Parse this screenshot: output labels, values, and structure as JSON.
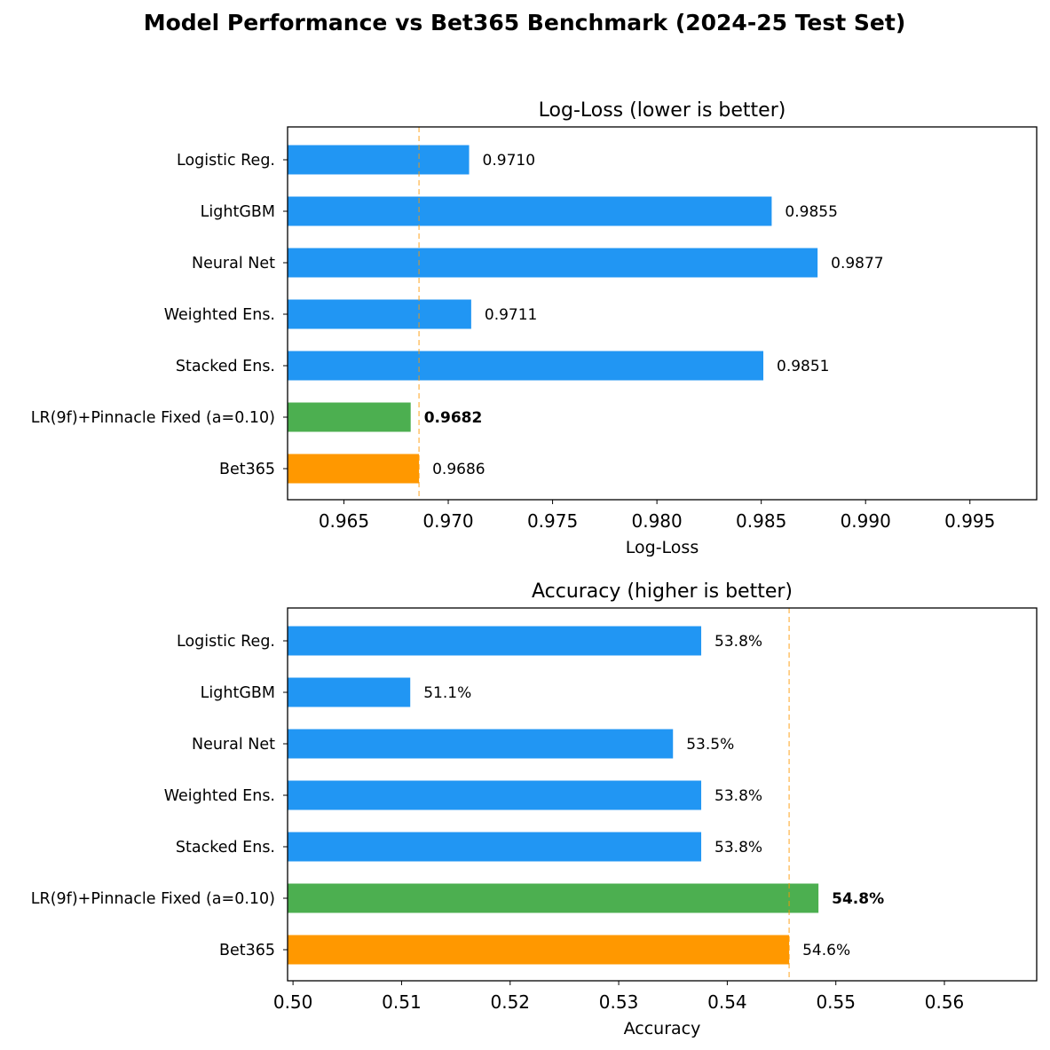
{
  "figure": {
    "title": "Model Performance vs Bet365 Benchmark (2024-25 Test Set)"
  },
  "colors": {
    "model": "#2196F3",
    "best": "#4CAF50",
    "benchmark": "#FF9800",
    "reference_line": "#FF9800"
  },
  "chart_data": [
    {
      "type": "bar",
      "orientation": "horizontal",
      "title": "Log-Loss (lower is better)",
      "xlabel": "Log-Loss",
      "ylabel": "",
      "xlim": [
        0.9623,
        0.9982
      ],
      "xticks": [
        0.965,
        0.97,
        0.975,
        0.98,
        0.985,
        0.99,
        0.995
      ],
      "xtick_labels": [
        "0.965",
        "0.970",
        "0.975",
        "0.980",
        "0.985",
        "0.990",
        "0.995"
      ],
      "categories": [
        "Logistic Reg.",
        "LightGBM",
        "Neural Net",
        "Weighted Ens.",
        "Stacked Ens.",
        "LR(9f)+Pinnacle Fixed (a=0.10)",
        "Bet365"
      ],
      "values": [
        0.971,
        0.9855,
        0.9877,
        0.9711,
        0.9851,
        0.9682,
        0.9686
      ],
      "value_labels": [
        "0.9710",
        "0.9855",
        "0.9877",
        "0.9711",
        "0.9851",
        "0.9682",
        "0.9686"
      ],
      "bar_roles": [
        "model",
        "model",
        "model",
        "model",
        "model",
        "best",
        "benchmark"
      ],
      "reference_line": {
        "value": 0.9686,
        "style": "dashed"
      },
      "grid": false,
      "legend": "none"
    },
    {
      "type": "bar",
      "orientation": "horizontal",
      "title": "Accuracy (higher is better)",
      "xlabel": "Accuracy",
      "ylabel": "",
      "xlim": [
        0.4995,
        0.5685
      ],
      "xticks": [
        0.5,
        0.51,
        0.52,
        0.53,
        0.54,
        0.55,
        0.56
      ],
      "xtick_labels": [
        "0.50",
        "0.51",
        "0.52",
        "0.53",
        "0.54",
        "0.55",
        "0.56"
      ],
      "categories": [
        "Logistic Reg.",
        "LightGBM",
        "Neural Net",
        "Weighted Ens.",
        "Stacked Ens.",
        "LR(9f)+Pinnacle Fixed (a=0.10)",
        "Bet365"
      ],
      "values": [
        0.5376,
        0.5108,
        0.535,
        0.5376,
        0.5376,
        0.5484,
        0.5457
      ],
      "value_labels": [
        "53.8%",
        "51.1%",
        "53.5%",
        "53.8%",
        "53.8%",
        "54.8%",
        "54.6%"
      ],
      "bar_roles": [
        "model",
        "model",
        "model",
        "model",
        "model",
        "best",
        "benchmark"
      ],
      "reference_line": {
        "value": 0.5457,
        "style": "dashed"
      },
      "grid": false,
      "legend": "none"
    }
  ]
}
